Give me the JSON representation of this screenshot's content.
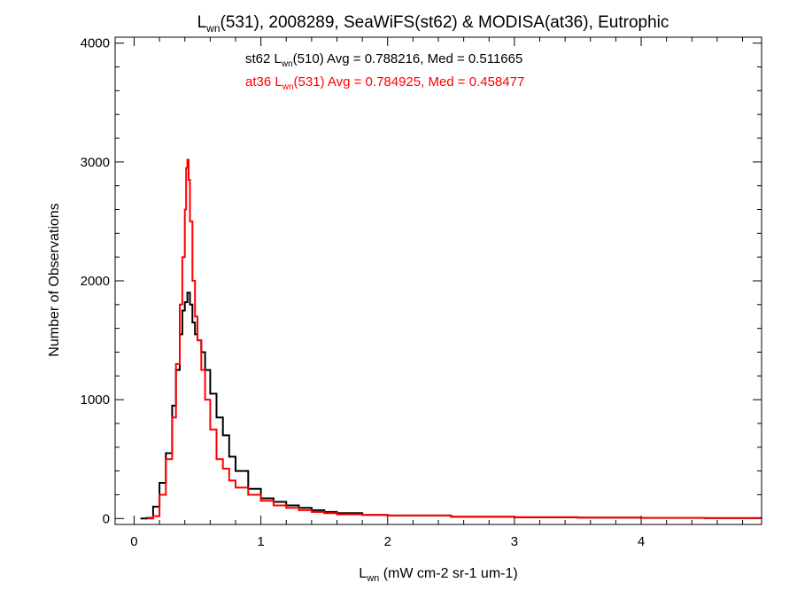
{
  "chart_data": {
    "type": "line",
    "title": {
      "prefix": "L",
      "sub": "wn",
      "suffix": "(531), 2008289, SeaWiFS(st62) & MODISA(at36), Eutrophic"
    },
    "xlabel": {
      "prefix": "L",
      "sub": "wn",
      "units": " (mW cm-2 sr-1 um-1)"
    },
    "ylabel": "Number of Observations",
    "xlim": [
      -0.15,
      4.95
    ],
    "ylim": [
      -50,
      4050
    ],
    "x_ticks": [
      0,
      1,
      2,
      3,
      4
    ],
    "x_tick_labels": [
      "0",
      "1",
      "2",
      "3",
      "4"
    ],
    "y_ticks": [
      0,
      1000,
      2000,
      3000,
      4000
    ],
    "y_tick_labels": [
      "0",
      "1000",
      "2000",
      "3000",
      "4000"
    ],
    "grid": false,
    "legend_position": "top-center",
    "annotations": [
      {
        "series_tag": "st62",
        "band": "(510)",
        "stats": " Avg = 0.788216, Med = 0.511665",
        "color": "#000000"
      },
      {
        "series_tag": "at36",
        "band": "(531)",
        "stats": " Avg = 0.784925, Med = 0.458477",
        "color": "#ff0000"
      }
    ],
    "series": [
      {
        "color": "#000000",
        "x": [
          0.05,
          0.1,
          0.15,
          0.2,
          0.25,
          0.3,
          0.33,
          0.36,
          0.38,
          0.4,
          0.42,
          0.44,
          0.46,
          0.48,
          0.5,
          0.53,
          0.56,
          0.6,
          0.65,
          0.7,
          0.75,
          0.8,
          0.9,
          1.0,
          1.1,
          1.2,
          1.3,
          1.4,
          1.5,
          1.6,
          1.8,
          2.0,
          2.5,
          3.0,
          3.5,
          4.0,
          4.5,
          4.95
        ],
        "y": [
          0,
          5,
          100,
          300,
          550,
          950,
          1250,
          1550,
          1750,
          1820,
          1900,
          1800,
          1650,
          1550,
          1500,
          1400,
          1250,
          1050,
          850,
          700,
          520,
          400,
          250,
          170,
          140,
          110,
          90,
          70,
          55,
          45,
          30,
          25,
          15,
          10,
          8,
          5,
          3,
          2
        ]
      },
      {
        "color": "#ff0000",
        "x": [
          0.1,
          0.15,
          0.2,
          0.25,
          0.3,
          0.33,
          0.36,
          0.38,
          0.4,
          0.41,
          0.42,
          0.43,
          0.44,
          0.46,
          0.48,
          0.5,
          0.53,
          0.56,
          0.6,
          0.65,
          0.7,
          0.75,
          0.8,
          0.9,
          1.0,
          1.1,
          1.2,
          1.3,
          1.4,
          1.5,
          1.6,
          1.8,
          2.0,
          2.5,
          3.0,
          3.5,
          4.0,
          4.5,
          4.95
        ],
        "y": [
          0,
          20,
          200,
          500,
          850,
          1300,
          1800,
          2200,
          2600,
          2950,
          3020,
          2850,
          2500,
          2000,
          1700,
          1500,
          1250,
          1000,
          750,
          500,
          420,
          320,
          260,
          200,
          150,
          110,
          90,
          70,
          55,
          45,
          35,
          30,
          25,
          15,
          12,
          8,
          6,
          4,
          3
        ]
      }
    ]
  }
}
